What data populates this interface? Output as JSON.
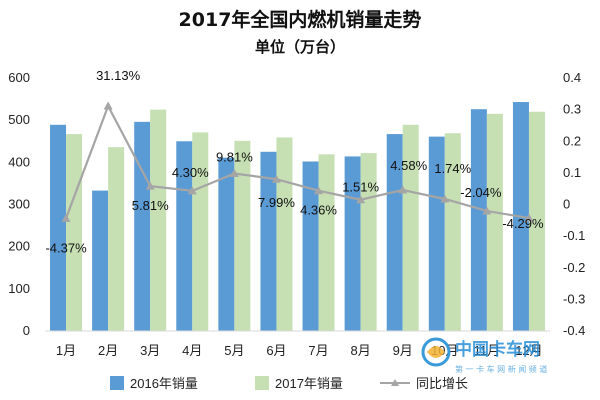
{
  "chart_data": {
    "type": "bar",
    "title": "2017年全国内燃机销量走势",
    "subtitle": "单位（万台）",
    "categories": [
      "1月",
      "2月",
      "3月",
      "4月",
      "5月",
      "6月",
      "7月",
      "8月",
      "9月",
      "10月",
      "11月",
      "12月"
    ],
    "series": [
      {
        "name": "2016年销量",
        "type": "bar",
        "color": "#5b9bd5",
        "values": [
          489,
          333,
          496,
          450,
          411,
          425,
          402,
          414,
          467,
          461,
          526,
          543
        ]
      },
      {
        "name": "2017年销量",
        "type": "bar",
        "color": "#c6e0b4",
        "values": [
          467,
          436,
          525,
          471,
          451,
          459,
          419,
          422,
          489,
          469,
          515,
          520
        ]
      },
      {
        "name": "同比增长",
        "type": "line",
        "axis": "right",
        "color": "#a5a5a5",
        "values": [
          -0.0437,
          0.3113,
          0.0581,
          0.043,
          0.0981,
          0.0799,
          0.0436,
          0.0151,
          0.0458,
          0.0174,
          -0.0204,
          -0.0429
        ],
        "labels": [
          "-4.37%",
          "31.13%",
          "5.81%",
          "4.30%",
          "9.81%",
          "7.99%",
          "4.36%",
          "1.51%",
          "4.58%",
          "1.74%",
          "-2.04%",
          "-4.29%"
        ]
      }
    ],
    "y_left": {
      "min": 0,
      "max": 600,
      "step": 100,
      "ticks": [
        "0",
        "100",
        "200",
        "300",
        "400",
        "500",
        "600"
      ]
    },
    "y_right": {
      "min": -0.4,
      "max": 0.4,
      "step": 0.1,
      "ticks": [
        "-0.4",
        "-0.3",
        "-0.2",
        "-0.1",
        "0",
        "0.1",
        "0.2",
        "0.3",
        "0.4"
      ]
    },
    "grid": false,
    "legend": "bottom"
  },
  "watermark": {
    "line1": "中国卡车网",
    "line2": "第 一 卡 车 网 新 闻 频 道"
  }
}
